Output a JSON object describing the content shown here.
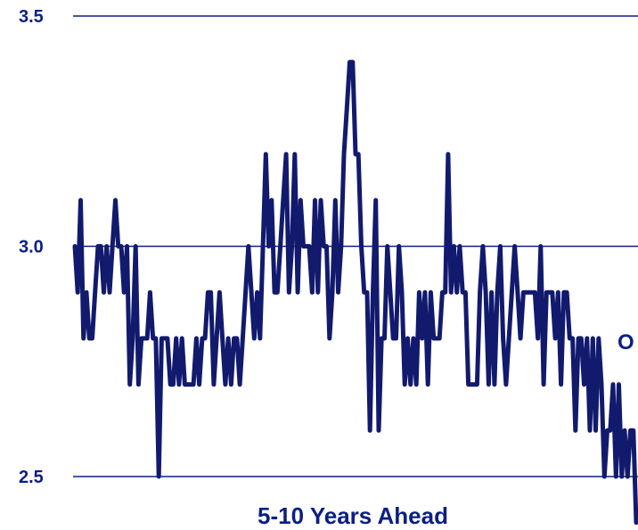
{
  "chart_data": {
    "type": "line",
    "title": "",
    "xlabel": "5-10 Years Ahead",
    "ylabel": "",
    "ylim": [
      2.5,
      3.5
    ],
    "yticks": [
      "2.5",
      "3.0",
      "3.5"
    ],
    "grid": true,
    "annotation": "O",
    "colors": {
      "line": "#121a6e",
      "text": "#0b1f84",
      "grid": "#0b1f84"
    },
    "series": [
      {
        "values": [
          3.0,
          2.9,
          3.1,
          2.8,
          2.9,
          2.8,
          2.8,
          2.9,
          3.0,
          3.0,
          2.9,
          3.0,
          2.9,
          3.0,
          3.1,
          3.0,
          3.0,
          2.9,
          3.0,
          2.7,
          2.8,
          3.0,
          2.7,
          2.8,
          2.8,
          2.8,
          2.9,
          2.8,
          2.8,
          2.5,
          2.8,
          2.8,
          2.8,
          2.7,
          2.7,
          2.8,
          2.7,
          2.8,
          2.7,
          2.7,
          2.7,
          2.7,
          2.8,
          2.7,
          2.8,
          2.8,
          2.9,
          2.9,
          2.7,
          2.8,
          2.9,
          2.8,
          2.7,
          2.8,
          2.7,
          2.8,
          2.8,
          2.7,
          2.8,
          2.9,
          3.0,
          2.9,
          2.8,
          2.9,
          2.8,
          3.0,
          3.2,
          3.0,
          3.1,
          2.9,
          2.9,
          3.0,
          3.1,
          3.2,
          2.9,
          3.0,
          3.2,
          2.9,
          3.1,
          3.0,
          3.0,
          3.0,
          2.9,
          3.1,
          2.9,
          3.1,
          3.0,
          3.0,
          2.8,
          2.9,
          3.1,
          2.9,
          3.0,
          3.2,
          3.3,
          3.4,
          3.4,
          3.2,
          3.2,
          3.0,
          2.9,
          2.9,
          2.6,
          2.9,
          3.1,
          2.6,
          2.8,
          2.8,
          3.0,
          2.9,
          2.8,
          2.8,
          3.0,
          2.9,
          2.7,
          2.8,
          2.7,
          2.8,
          2.7,
          2.9,
          2.8,
          2.9,
          2.7,
          2.9,
          2.8,
          2.8,
          2.8,
          2.9,
          2.9,
          3.2,
          2.9,
          3.0,
          2.9,
          3.0,
          2.9,
          2.9,
          2.7,
          2.7,
          2.7,
          2.7,
          2.9,
          3.0,
          2.9,
          2.7,
          2.9,
          2.7,
          2.9,
          3.0,
          2.8,
          2.7,
          2.8,
          2.9,
          3.0,
          2.9,
          2.8,
          2.9,
          2.9,
          2.9,
          2.9,
          2.9,
          2.8,
          3.0,
          2.7,
          2.9,
          2.9,
          2.9,
          2.8,
          2.9,
          2.7,
          2.9,
          2.9,
          2.8,
          2.8,
          2.6,
          2.8,
          2.8,
          2.7,
          2.8,
          2.6,
          2.8,
          2.6,
          2.8,
          2.7,
          2.5,
          2.6,
          2.6,
          2.7,
          2.5,
          2.7,
          2.5,
          2.6,
          2.5,
          2.6,
          2.6,
          2.4
        ]
      }
    ]
  }
}
